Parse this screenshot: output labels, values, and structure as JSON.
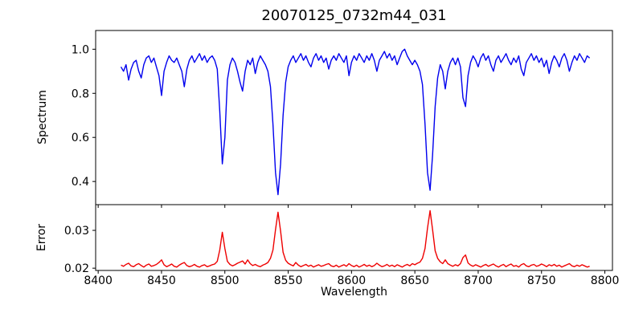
{
  "chart_data": {
    "type": "line",
    "title": "20070125_0732m44_031",
    "xlabel": "Wavelength",
    "grid": false,
    "legend": null,
    "x_start": 8418,
    "x_step": 2,
    "xlim": [
      8398,
      8806
    ],
    "x_ticks": [
      8400,
      8450,
      8500,
      8550,
      8600,
      8650,
      8700,
      8750,
      8800
    ],
    "x_tick_labels": [
      "8400",
      "8450",
      "8500",
      "8550",
      "8600",
      "8650",
      "8700",
      "8750",
      "8800"
    ],
    "absorption_line_centers": [
      8498,
      8542,
      8662
    ],
    "panels": [
      {
        "name": "spectrum",
        "ylabel": "Spectrum",
        "line_color": "#0000ee",
        "ylim": [
          0.295,
          1.085
        ],
        "y_ticks": [
          1.0,
          0.8,
          0.6,
          0.4
        ],
        "y_tick_labels": [
          "1.0",
          "0.8",
          "0.6",
          "0.4"
        ],
        "values": [
          0.92,
          0.9,
          0.93,
          0.86,
          0.91,
          0.94,
          0.95,
          0.9,
          0.87,
          0.93,
          0.96,
          0.97,
          0.94,
          0.96,
          0.92,
          0.88,
          0.79,
          0.9,
          0.94,
          0.97,
          0.95,
          0.94,
          0.96,
          0.93,
          0.9,
          0.83,
          0.91,
          0.95,
          0.97,
          0.94,
          0.96,
          0.98,
          0.95,
          0.97,
          0.94,
          0.96,
          0.97,
          0.95,
          0.91,
          0.72,
          0.48,
          0.6,
          0.86,
          0.93,
          0.96,
          0.94,
          0.9,
          0.85,
          0.81,
          0.9,
          0.95,
          0.93,
          0.96,
          0.89,
          0.94,
          0.97,
          0.95,
          0.93,
          0.9,
          0.83,
          0.66,
          0.44,
          0.34,
          0.48,
          0.7,
          0.85,
          0.92,
          0.95,
          0.97,
          0.94,
          0.96,
          0.98,
          0.95,
          0.97,
          0.94,
          0.92,
          0.96,
          0.98,
          0.95,
          0.97,
          0.94,
          0.96,
          0.91,
          0.95,
          0.97,
          0.95,
          0.98,
          0.96,
          0.94,
          0.97,
          0.88,
          0.94,
          0.97,
          0.95,
          0.98,
          0.96,
          0.94,
          0.97,
          0.95,
          0.98,
          0.95,
          0.9,
          0.95,
          0.97,
          0.99,
          0.96,
          0.98,
          0.95,
          0.97,
          0.93,
          0.96,
          0.99,
          1.0,
          0.97,
          0.95,
          0.93,
          0.95,
          0.93,
          0.9,
          0.84,
          0.66,
          0.44,
          0.36,
          0.52,
          0.74,
          0.87,
          0.93,
          0.9,
          0.82,
          0.9,
          0.94,
          0.96,
          0.93,
          0.96,
          0.92,
          0.78,
          0.74,
          0.88,
          0.94,
          0.97,
          0.95,
          0.92,
          0.96,
          0.98,
          0.95,
          0.97,
          0.93,
          0.9,
          0.95,
          0.97,
          0.94,
          0.96,
          0.98,
          0.95,
          0.93,
          0.96,
          0.94,
          0.97,
          0.91,
          0.88,
          0.94,
          0.96,
          0.98,
          0.95,
          0.97,
          0.94,
          0.96,
          0.92,
          0.95,
          0.89,
          0.94,
          0.97,
          0.95,
          0.92,
          0.96,
          0.98,
          0.95,
          0.9,
          0.94,
          0.97,
          0.95,
          0.98,
          0.96,
          0.94,
          0.97,
          0.96
        ]
      },
      {
        "name": "error",
        "ylabel": "Error",
        "line_color": "#ee0000",
        "ylim": [
          0.0194,
          0.0368
        ],
        "y_ticks": [
          0.03,
          0.02
        ],
        "y_tick_labels": [
          "0.03",
          "0.02"
        ],
        "values": [
          0.0208,
          0.0205,
          0.021,
          0.0213,
          0.0206,
          0.0204,
          0.0209,
          0.0212,
          0.0207,
          0.0203,
          0.0208,
          0.0211,
          0.0205,
          0.0207,
          0.021,
          0.0215,
          0.0222,
          0.0209,
          0.0204,
          0.0207,
          0.0211,
          0.0205,
          0.0203,
          0.0208,
          0.0212,
          0.0215,
          0.0207,
          0.0204,
          0.0206,
          0.021,
          0.0205,
          0.0203,
          0.0207,
          0.0209,
          0.0204,
          0.0206,
          0.0209,
          0.0211,
          0.0218,
          0.0248,
          0.0295,
          0.0252,
          0.0218,
          0.021,
          0.0206,
          0.0209,
          0.0213,
          0.0216,
          0.0219,
          0.0211,
          0.0222,
          0.0212,
          0.0207,
          0.021,
          0.0206,
          0.0204,
          0.0208,
          0.0211,
          0.0215,
          0.0226,
          0.0248,
          0.0302,
          0.0348,
          0.0298,
          0.0242,
          0.0221,
          0.0213,
          0.0209,
          0.0206,
          0.0215,
          0.0208,
          0.0204,
          0.0207,
          0.021,
          0.0205,
          0.0208,
          0.0203,
          0.0206,
          0.0209,
          0.0205,
          0.0207,
          0.021,
          0.0212,
          0.0206,
          0.0204,
          0.0208,
          0.0203,
          0.0206,
          0.0209,
          0.0205,
          0.0212,
          0.0207,
          0.0204,
          0.0208,
          0.0203,
          0.0206,
          0.021,
          0.0205,
          0.0208,
          0.0204,
          0.0207,
          0.0213,
          0.0208,
          0.0204,
          0.0206,
          0.021,
          0.0205,
          0.0208,
          0.0204,
          0.0209,
          0.0206,
          0.0203,
          0.0207,
          0.021,
          0.0206,
          0.0212,
          0.0209,
          0.0213,
          0.0216,
          0.0226,
          0.0252,
          0.0306,
          0.0352,
          0.0302,
          0.0246,
          0.0226,
          0.0217,
          0.0212,
          0.0222,
          0.0212,
          0.0208,
          0.0205,
          0.0209,
          0.0206,
          0.0212,
          0.0228,
          0.0235,
          0.0214,
          0.0208,
          0.0205,
          0.0209,
          0.0206,
          0.0203,
          0.0207,
          0.021,
          0.0205,
          0.0208,
          0.0211,
          0.0206,
          0.0203,
          0.0207,
          0.021,
          0.0204,
          0.0208,
          0.0211,
          0.0205,
          0.0207,
          0.0203,
          0.0209,
          0.0212,
          0.0206,
          0.0204,
          0.0208,
          0.021,
          0.0205,
          0.0207,
          0.0211,
          0.0208,
          0.0204,
          0.0209,
          0.0206,
          0.021,
          0.0205,
          0.0208,
          0.0203,
          0.0206,
          0.0209,
          0.0212,
          0.0206,
          0.0204,
          0.0208,
          0.0205,
          0.0209,
          0.0206,
          0.0203,
          0.0205
        ]
      }
    ],
    "colors": {
      "axis": "#000000",
      "background": "#ffffff"
    }
  }
}
